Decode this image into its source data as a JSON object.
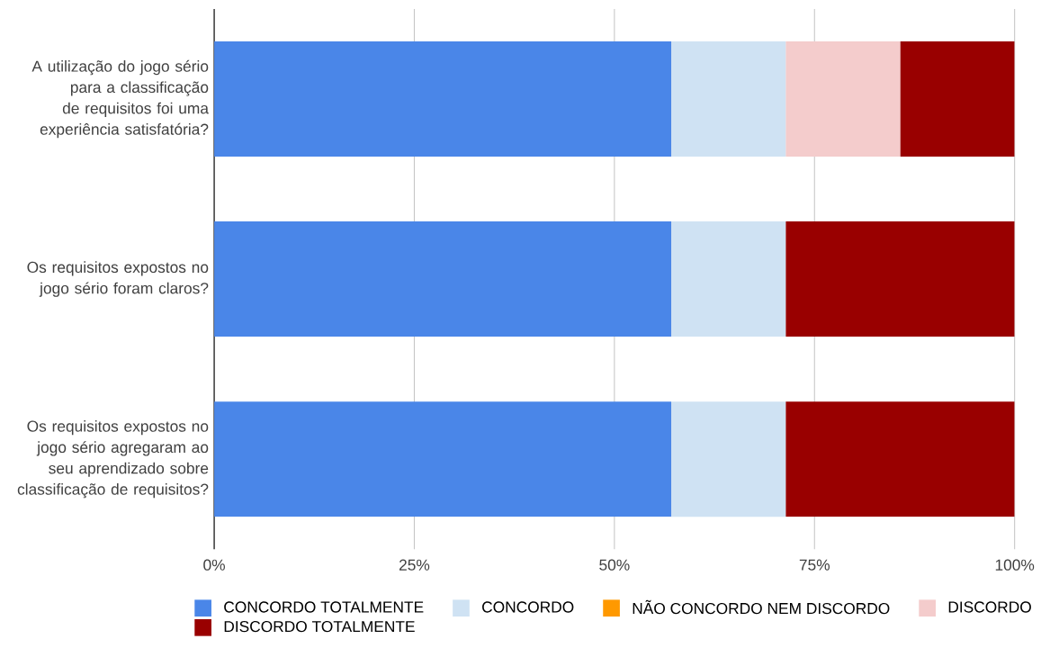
{
  "chart_data": {
    "type": "bar",
    "orientation": "horizontal",
    "stacked": true,
    "categories": [
      "A utilização do jogo sério para a classificação de requisitos foi uma experiência satisfatória?",
      "Os requisitos expostos no jogo sério foram claros?",
      "Os requisitos expostos no jogo sério agregaram ao seu aprendizado sobre classificação de requisitos?"
    ],
    "series": [
      {
        "name": "CONCORDO TOTALMENTE",
        "color": "#4a86e8",
        "values": [
          57.1,
          57.1,
          57.1
        ]
      },
      {
        "name": "CONCORDO",
        "color": "#cfe2f3",
        "values": [
          14.3,
          14.3,
          14.3
        ]
      },
      {
        "name": "NÃO CONCORDO NEM DISCORDO",
        "color": "#ff9900",
        "values": [
          0,
          0,
          0
        ]
      },
      {
        "name": "DISCORDO",
        "color": "#f4cccc",
        "values": [
          14.3,
          0,
          0
        ]
      },
      {
        "name": "DISCORDO TOTALMENTE",
        "color": "#990000",
        "values": [
          14.3,
          28.6,
          28.6
        ]
      }
    ],
    "xlim": [
      0,
      100
    ],
    "xticks": [
      {
        "value": 0,
        "label": "0%"
      },
      {
        "value": 25,
        "label": "25%"
      },
      {
        "value": 50,
        "label": "50%"
      },
      {
        "value": 75,
        "label": "75%"
      },
      {
        "value": 100,
        "label": "100%"
      }
    ],
    "grid": "x",
    "legend": "bottom"
  }
}
